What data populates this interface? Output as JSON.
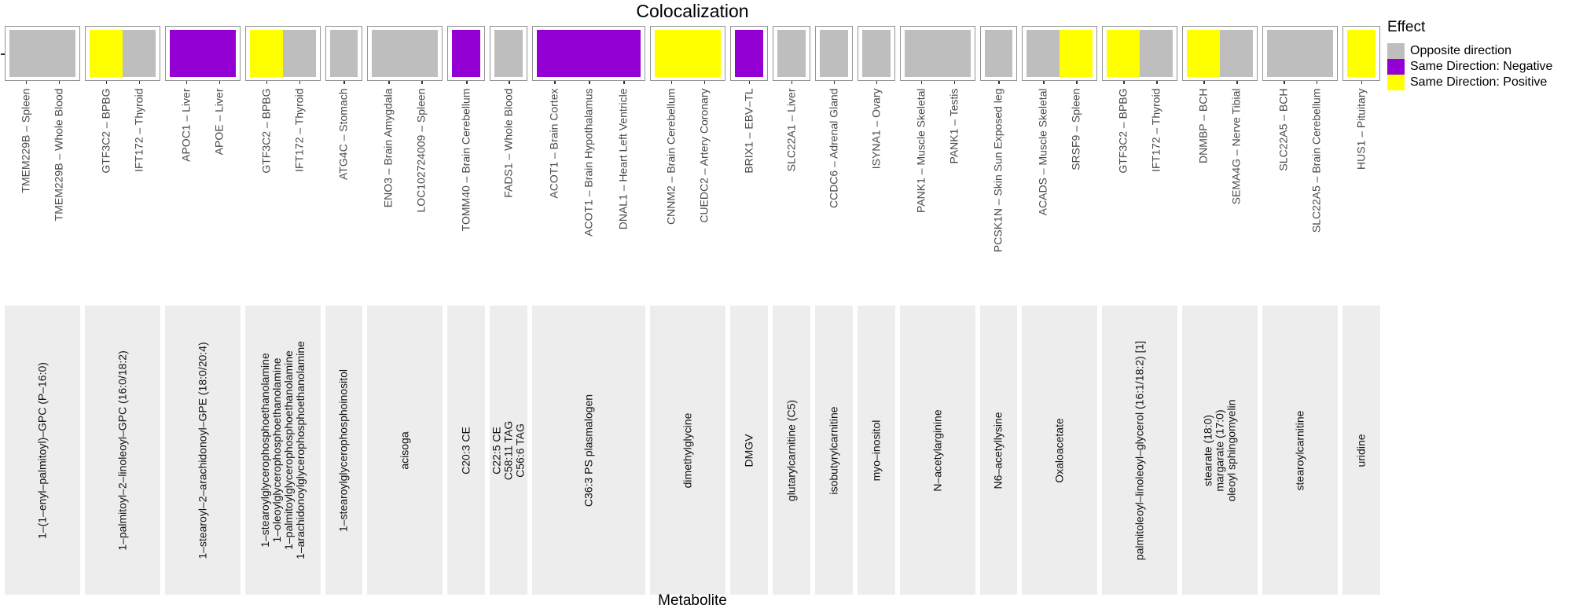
{
  "title": "Colocalization",
  "x_axis_label": "Metabolite",
  "colors": {
    "opposite": "#bebebe",
    "negative": "#9400d3",
    "positive": "#ffff00"
  },
  "legend": {
    "title": "Effect",
    "position": "right",
    "items": [
      {
        "label": "Opposite direction",
        "effect": "opposite"
      },
      {
        "label": "Same Direction: Negative",
        "effect": "negative"
      },
      {
        "label": "Same Direction: Positive",
        "effect": "positive"
      }
    ]
  },
  "chart_data": {
    "type": "bar",
    "title": "Colocalization",
    "xlabel": "Metabolite",
    "ylabel": "",
    "y_axis_tick_labels": [],
    "bar_value": 1,
    "note": "Faceted presence plot: every bar has equal full height; bar fill encodes Effect category; facets (strips at bottom) are metabolites; x items are gene - tissue pairs.",
    "facets": [
      {
        "metabolite_lines": [
          "1–(1–enyl–palmitoyl)–GPC (P–16:0)"
        ],
        "bars": [
          {
            "label": "TMEM229B – Spleen",
            "effect": "opposite"
          },
          {
            "label": "TMEM229B – Whole Blood",
            "effect": "opposite"
          }
        ]
      },
      {
        "metabolite_lines": [
          "1–palmitoyl–2–linoleoyl–GPC (16:0/18:2)"
        ],
        "bars": [
          {
            "label": "GTF3C2 – BPBG",
            "effect": "positive"
          },
          {
            "label": "IFT172 – Thyroid",
            "effect": "opposite"
          }
        ]
      },
      {
        "metabolite_lines": [
          "1–stearoyl–2–arachidonoyl–GPE (18:0/20:4)"
        ],
        "bars": [
          {
            "label": "APOC1 – Liver",
            "effect": "negative"
          },
          {
            "label": "APOE – Liver",
            "effect": "negative"
          }
        ]
      },
      {
        "metabolite_lines": [
          "1–stearoylglycerophosphoethanolamine",
          "1–oleoylglycerophosphoethanolamine",
          "1–palmitoylglycerophosphoethanolamine",
          "1–arachidonoylglycerophosphoethanolamine"
        ],
        "bars": [
          {
            "label": "GTF3C2 – BPBG",
            "effect": "positive"
          },
          {
            "label": "IFT172 – Thyroid",
            "effect": "opposite"
          }
        ]
      },
      {
        "metabolite_lines": [
          "1–stearoylglycerophosphoinositol"
        ],
        "bars": [
          {
            "label": "ATG4C – Stomach",
            "effect": "opposite"
          }
        ]
      },
      {
        "metabolite_lines": [
          "acisoga"
        ],
        "bars": [
          {
            "label": "ENO3 – Brain Amygdala",
            "effect": "opposite"
          },
          {
            "label": "LOC102724009 – Spleen",
            "effect": "opposite"
          }
        ]
      },
      {
        "metabolite_lines": [
          "C20:3 CE"
        ],
        "bars": [
          {
            "label": "TOMM40 – Brain Cerebellum",
            "effect": "negative"
          }
        ]
      },
      {
        "metabolite_lines": [
          "C22:5 CE",
          "C58:11 TAG",
          "C56:6 TAG"
        ],
        "bars": [
          {
            "label": "FADS1 – Whole Blood",
            "effect": "opposite"
          }
        ]
      },
      {
        "metabolite_lines": [
          "C36:3 PS plasmalogen"
        ],
        "bars": [
          {
            "label": "ACOT1 – Brain Cortex",
            "effect": "negative"
          },
          {
            "label": "ACOT1 – Brain Hypothalamus",
            "effect": "negative"
          },
          {
            "label": "DNAL1 – Heart Left Ventricle",
            "effect": "negative"
          }
        ]
      },
      {
        "metabolite_lines": [
          "dimethylglycine"
        ],
        "bars": [
          {
            "label": "CNNM2 – Brain Cerebellum",
            "effect": "positive"
          },
          {
            "label": "CUEDC2 – Artery Coronary",
            "effect": "positive"
          }
        ]
      },
      {
        "metabolite_lines": [
          "DMGV"
        ],
        "bars": [
          {
            "label": "BRIX1 – EBV–TL",
            "effect": "negative"
          }
        ]
      },
      {
        "metabolite_lines": [
          "glutarylcarnitine (C5)"
        ],
        "bars": [
          {
            "label": "SLC22A1 – Liver",
            "effect": "opposite"
          }
        ]
      },
      {
        "metabolite_lines": [
          "isobutyrylcarnitine"
        ],
        "bars": [
          {
            "label": "CCDC6 – Adrenal Gland",
            "effect": "opposite"
          }
        ]
      },
      {
        "metabolite_lines": [
          "myo–inositol"
        ],
        "bars": [
          {
            "label": "ISYNA1 – Ovary",
            "effect": "opposite"
          }
        ]
      },
      {
        "metabolite_lines": [
          "N–acetylarginine"
        ],
        "bars": [
          {
            "label": "PANK1 – Muscle Skeletal",
            "effect": "opposite"
          },
          {
            "label": "PANK1 – Testis",
            "effect": "opposite"
          }
        ]
      },
      {
        "metabolite_lines": [
          "N6–acetyllysine"
        ],
        "bars": [
          {
            "label": "PCSK1N – Skin Sun Exposed leg",
            "effect": "opposite"
          }
        ]
      },
      {
        "metabolite_lines": [
          "Oxaloacetate"
        ],
        "bars": [
          {
            "label": "ACADS – Muscle Skeletal",
            "effect": "opposite"
          },
          {
            "label": "SRSF9 – Spleen",
            "effect": "positive"
          }
        ]
      },
      {
        "metabolite_lines": [
          "palmitoleoyl–linoleoyl–glycerol (16:1/18:2) [1]"
        ],
        "bars": [
          {
            "label": "GTF3C2 – BPBG",
            "effect": "positive"
          },
          {
            "label": "IFT172 – Thyroid",
            "effect": "opposite"
          }
        ]
      },
      {
        "metabolite_lines": [
          "stearate (18:0)",
          "margarate (17:0)",
          "oleoyl sphingomyelin"
        ],
        "bars": [
          {
            "label": "DNMBP – BCH",
            "effect": "positive"
          },
          {
            "label": "SEMA4G – Nerve Tibial",
            "effect": "opposite"
          }
        ]
      },
      {
        "metabolite_lines": [
          "stearoylcarnitine"
        ],
        "bars": [
          {
            "label": "SLC22A5 – BCH",
            "effect": "opposite"
          },
          {
            "label": "SLC22A5 – Brain Cerebellum",
            "effect": "opposite"
          }
        ]
      },
      {
        "metabolite_lines": [
          "uridine"
        ],
        "bars": [
          {
            "label": "HUS1 – Pituitary",
            "effect": "positive"
          }
        ]
      }
    ]
  }
}
